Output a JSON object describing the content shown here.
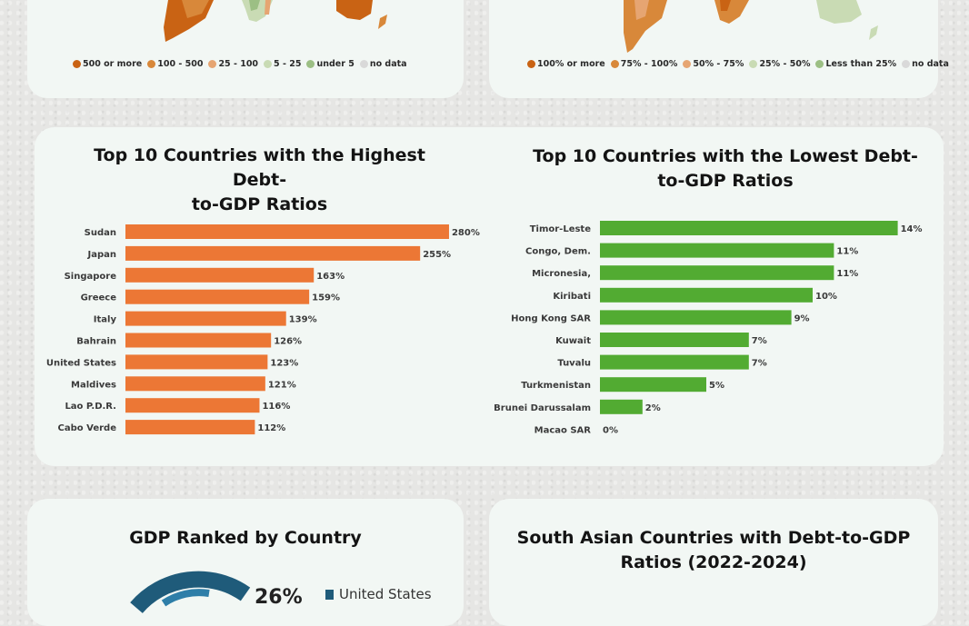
{
  "legends": {
    "gdp_map": [
      {
        "label": "500 or more",
        "color": "#c96314"
      },
      {
        "label": "100 - 500",
        "color": "#d8883a"
      },
      {
        "label": "25 - 100",
        "color": "#e6a572"
      },
      {
        "label": "5 - 25",
        "color": "#c9dbb4"
      },
      {
        "label": "under 5",
        "color": "#9cbf84"
      },
      {
        "label": "no data",
        "color": "#d9d9d9"
      }
    ],
    "debt_map": [
      {
        "label": "100% or more",
        "color": "#c96314"
      },
      {
        "label": "75% - 100%",
        "color": "#d8883a"
      },
      {
        "label": "50% - 75%",
        "color": "#e6a572"
      },
      {
        "label": "25% - 50%",
        "color": "#c9dbb4"
      },
      {
        "label": "Less than 25%",
        "color": "#9cbf84"
      },
      {
        "label": "no data",
        "color": "#d9d9d9"
      }
    ]
  },
  "gdp_rank": {
    "title": "GDP Ranked by Country",
    "top_pct": "26%",
    "top_country": "United States"
  },
  "south_asia": {
    "title_line1": "South Asian Countries with Debt-to-GDP",
    "title_line2": "Ratios (2022-2024)"
  },
  "chart_data": [
    {
      "type": "bar",
      "orientation": "horizontal",
      "title_line1": "Top 10 Countries with the Highest Debt-",
      "title_line2": "to-GDP Ratios",
      "color": "#ec7735",
      "xlim": [
        0,
        300
      ],
      "categories": [
        "Sudan",
        "Japan",
        "Singapore",
        "Greece",
        "Italy",
        "Bahrain",
        "United States",
        "Maldives",
        "Lao P.D.R.",
        "Cabo Verde"
      ],
      "values": [
        280,
        255,
        163,
        159,
        139,
        126,
        123,
        121,
        116,
        112
      ],
      "labels": [
        "280%",
        "255%",
        "163%",
        "159%",
        "139%",
        "126%",
        "123%",
        "121%",
        "116%",
        "112%"
      ]
    },
    {
      "type": "bar",
      "orientation": "horizontal",
      "title_line1": "Top 10 Countries with the Lowest Debt-",
      "title_line2": "to-GDP Ratios",
      "color": "#52ab32",
      "xlim": [
        0,
        15
      ],
      "categories": [
        "Timor-Leste",
        "Congo, Dem.",
        "Micronesia,",
        "Kiribati",
        "Hong Kong SAR",
        "Kuwait",
        "Tuvalu",
        "Turkmenistan",
        "Brunei Darussalam",
        "Macao SAR"
      ],
      "values": [
        14,
        11,
        11,
        10,
        9,
        7,
        7,
        5,
        2,
        0
      ],
      "labels": [
        "14%",
        "11%",
        "11%",
        "10%",
        "9%",
        "7%",
        "7%",
        "5%",
        "2%",
        "0%"
      ]
    }
  ]
}
